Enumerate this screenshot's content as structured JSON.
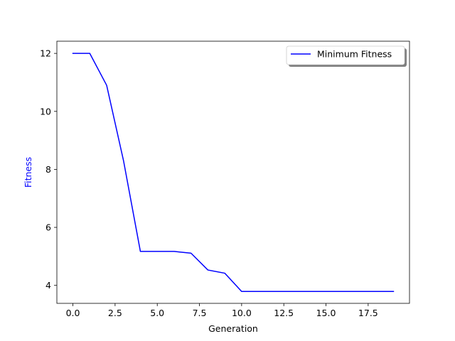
{
  "chart_data": {
    "type": "line",
    "title": "",
    "xlabel": "Generation",
    "ylabel": "Fitness",
    "ylabel_color": "#0000ff",
    "xlim": [
      -0.95,
      19.95
    ],
    "ylim": [
      3.38,
      12.42
    ],
    "xticks": [
      0.0,
      2.5,
      5.0,
      7.5,
      10.0,
      12.5,
      15.0,
      17.5
    ],
    "xtick_labels": [
      "0.0",
      "2.5",
      "5.0",
      "7.5",
      "10.0",
      "12.5",
      "15.0",
      "17.5"
    ],
    "yticks": [
      4,
      6,
      8,
      10,
      12
    ],
    "ytick_labels": [
      "4",
      "6",
      "8",
      "10",
      "12"
    ],
    "grid": false,
    "legend_position": "top-right",
    "series": [
      {
        "name": "Minimum Fitness",
        "color": "#0000ff",
        "x": [
          0,
          1,
          2,
          3,
          4,
          5,
          6,
          7,
          8,
          9,
          10,
          11,
          12,
          13,
          14,
          15,
          16,
          17,
          18,
          19
        ],
        "y": [
          12.0,
          12.0,
          10.9,
          8.3,
          5.17,
          5.17,
          5.17,
          5.11,
          4.53,
          4.42,
          3.79,
          3.79,
          3.79,
          3.79,
          3.79,
          3.79,
          3.79,
          3.79,
          3.79,
          3.79
        ]
      }
    ]
  }
}
